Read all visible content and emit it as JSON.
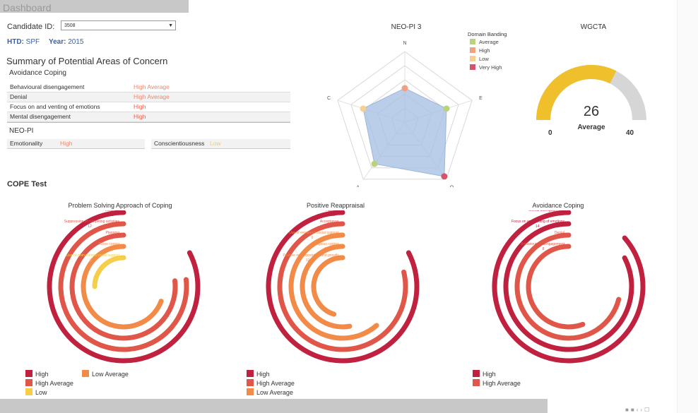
{
  "header": {
    "title": "Dashboard"
  },
  "candidate": {
    "label": "Candidate ID:",
    "value": "3508"
  },
  "htd": {
    "label": "HTD:",
    "value": "SPF"
  },
  "year": {
    "label": "Year:",
    "value": "2015"
  },
  "summary": {
    "title": "Summary of Potential Areas of Concern",
    "avoidance_title": "Avoidance Coping",
    "rows": [
      {
        "label": "Behavioural disengagement",
        "value": "High Average",
        "color": "#f0876a"
      },
      {
        "label": "Denial",
        "value": "High Average",
        "color": "#f0876a"
      },
      {
        "label": "Focus on and venting of emotions",
        "value": "High",
        "color": "#e8604c"
      },
      {
        "label": "Mental disengagement",
        "value": "High",
        "color": "#e8604c"
      }
    ],
    "neo_title": "NEO-PI",
    "neo_items": [
      {
        "label": "Emotionality",
        "value": "High",
        "color": "#f0876a"
      },
      {
        "label": "Conscientiousness",
        "value": "Low",
        "color": "#f5c77a"
      }
    ]
  },
  "neo": {
    "title": "NEO-PI 3",
    "axes": [
      "N",
      "E",
      "O",
      "A",
      "C"
    ],
    "values": [
      0.48,
      0.62,
      0.95,
      0.73,
      0.62
    ],
    "bands": [
      "High",
      "Average",
      "Very High",
      "Average",
      "Low"
    ],
    "legend_title": "Domain Banding",
    "legend": [
      {
        "label": "Average",
        "color": "#b9d37c"
      },
      {
        "label": "High",
        "color": "#f2a07f"
      },
      {
        "label": "Low",
        "color": "#f7cf8e"
      },
      {
        "label": "Very High",
        "color": "#d4546a"
      }
    ]
  },
  "wgcta": {
    "title": "WGCTA",
    "value": "26",
    "band": "Average",
    "min": "0",
    "max": "40",
    "fraction": 0.65,
    "fill_color": "#f0c02c",
    "track_color": "#d6d6d6"
  },
  "cope": {
    "title": "COPE Test",
    "charts": [
      {
        "title": "Problem Solving Approach of Coping",
        "items": [
          {
            "label": "Restraint",
            "value": "12",
            "band": "High",
            "frac": 0.86
          },
          {
            "label": "Suppression of competing activities",
            "value": "12",
            "band": "High Average",
            "frac": 0.8
          },
          {
            "label": "Planning",
            "value": "15",
            "band": "High Average",
            "frac": 0.8
          },
          {
            "label": "Active coping",
            "value": "13",
            "band": "Low Average",
            "frac": 0.72
          },
          {
            "label": "Use of instrumental social support",
            "value": "6",
            "band": "Low",
            "frac": 0.26
          }
        ]
      },
      {
        "title": "Positive Reappraisal",
        "items": [
          {
            "label": "Humour",
            "value": "13",
            "band": "High",
            "frac": 0.86
          },
          {
            "label": "Acceptance",
            "value": "14",
            "band": "High Average",
            "frac": 0.82
          },
          {
            "label": "Use of emotional social support",
            "value": "9",
            "band": "Low Average",
            "frac": 0.64
          },
          {
            "label": "Religious coping",
            "value": "4",
            "band": "Low Average",
            "frac": 0.55
          },
          {
            "label": "Positive reinterpretation and growth",
            "value": "12",
            "band": "Low Average",
            "frac": 0.47
          }
        ]
      },
      {
        "title": "Avoidance Coping",
        "items": [
          {
            "label": "Mental disengagement",
            "value": "12",
            "band": "High",
            "frac": 0.9
          },
          {
            "label": "Focus on and venting of emotions",
            "value": "14",
            "band": "High",
            "frac": 0.86
          },
          {
            "label": "Denial",
            "value": "4",
            "band": "High Average",
            "frac": 0.74
          },
          {
            "label": "Behavioural disengagement",
            "value": "8",
            "band": "High Average",
            "frac": 0.58
          }
        ]
      }
    ],
    "band_colors": {
      "High": "#c0213f",
      "High Average": "#e0574a",
      "Low Average": "#f28a48",
      "Low": "#f5cf4a"
    },
    "legends": [
      [
        {
          "label": "High",
          "color": "#c0213f"
        },
        {
          "label": "High Average",
          "color": "#e0574a"
        },
        {
          "label": "Low",
          "color": "#f5cf4a"
        },
        {
          "label": "Low Average",
          "color": "#f28a48"
        }
      ],
      [
        {
          "label": "High",
          "color": "#c0213f"
        },
        {
          "label": "High Average",
          "color": "#e0574a"
        },
        {
          "label": "Low Average",
          "color": "#f28a48"
        }
      ],
      [
        {
          "label": "High",
          "color": "#c0213f"
        },
        {
          "label": "High Average",
          "color": "#e0574a"
        }
      ]
    ]
  }
}
